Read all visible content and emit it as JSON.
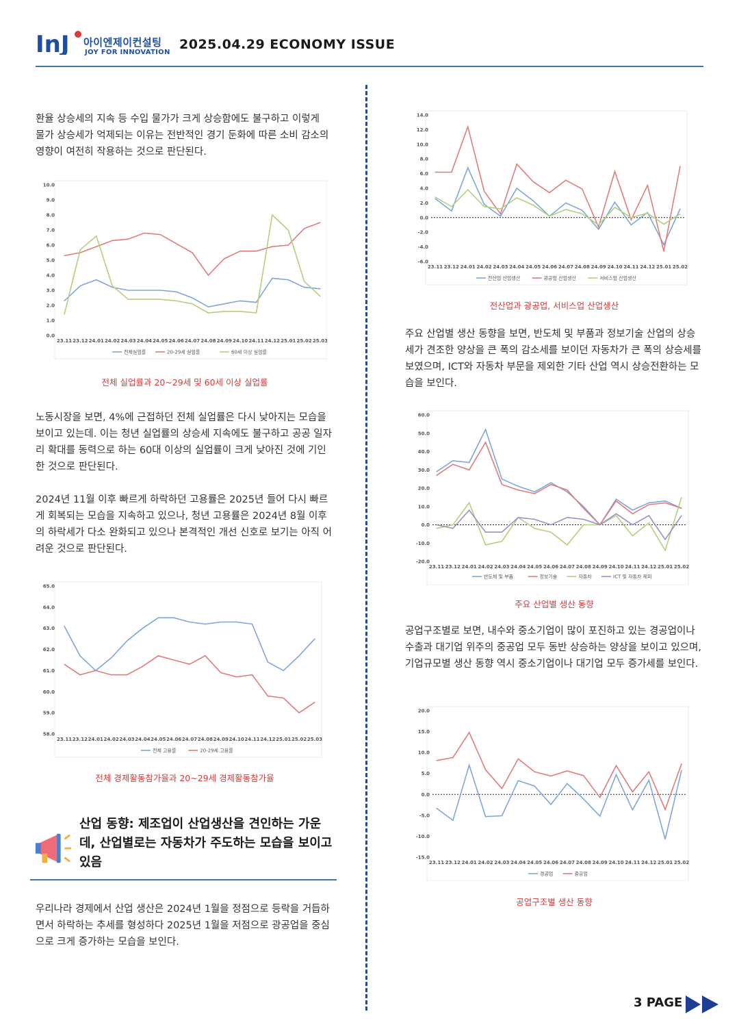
{
  "header": {
    "logo_letters": "InJ",
    "logo_name": "아이엔제이컨설팅",
    "logo_tagline": "JOY FOR INNOVATION",
    "issue_title": "2025.04.29 ECONOMY ISSUE"
  },
  "left": {
    "para1": "환율 상승세의 지속 등 수입 물가가 크게 상승함에도 불구하고 이렇게 물가 상승세가 억제되는 이유는 전반적인 경기 둔화에 따른 소비 감소의 영향이 여전히 작용하는 것으로 판단된다.",
    "caption1": "전체 실업률과 20~29세 및 60세 이상 실업률",
    "para2": "노동시장을 보면, 4%에 근접하던 전체 실업률은 다시 낮아지는 모습을 보이고 있는데. 이는 청년 실업률의 상승세 지속에도 불구하고 공공 일자리 확대를 동력으로 하는 60대 이상의 실업률이 크게 낮아진 것에 기인한 것으로 판단된다.",
    "para3": "2024년 11월 이후 빠르게 하락하던 고용률은 2025년 들어 다시 빠르게 회복되는 모습을 지속하고 있으나, 청년 고용률은 2024년 8월 이후의 하락세가 다소 완화되고 있으나 본격적인 개선 신호로 보기는 아직 어려운 것으로 판단된다.",
    "caption2": "전체 경제활동참가율과 20~29세 경제활동참가율",
    "section_title": "산업 동향: 제조업이 산업생산을 견인하는 가운데, 산업별로는 자동차가 주도하는 모습을 보이고 있음",
    "para4": "우리나라 경제에서 산업 생산은 2024년 1월을 정점으로 등락을 거듭하면서 하락하는 추세를 형성하다 2025년 1월을 저점으로 광공업을 중심으로 크게 증가하는 모습을 보인다."
  },
  "right": {
    "caption3": "전산업과 광공업, 서비스업 산업생산",
    "para5": "주요 산업별 생산 동향을 보면, 반도체 및 부품과 정보기술 산업의 상승세가 견조한 양상을 큰 폭의 감소세를 보이던 자동차가 큰 폭의 상승세를 보였으며, ICT와 자동차 부문을 제외한 기타 산업 역시 상승전환하는 모습을 보인다.",
    "caption4": "주요 산업별 생산 동향",
    "para6": "공업구조별로 보면, 내수와 중소기업이 많이 포진하고 있는 경공업이나 수출과 대기업 위주의 중공업 모두 동반 상승하는 양상을 보이고 있으며, 기업규모별 생산 동향 역시 중소기업이나 대기업 모두 증가세를 보인다.",
    "caption5": "공업구조별 생산 동향"
  },
  "footer": {
    "page": "3 PAGE"
  },
  "colors": {
    "blue": "#7ea6d8",
    "red": "#e07b7b",
    "green": "#b3cf7a",
    "accent": "#2b4a86",
    "caption": "#d63a3a"
  },
  "icons": {
    "section": "megaphone-icon",
    "page_nav": "double-arrow-right-icon"
  },
  "chart_data": [
    {
      "type": "line",
      "categories": [
        "23.11",
        "23.12",
        "24.01",
        "24.02",
        "24.03",
        "24.04",
        "24.05",
        "24.06",
        "24.07",
        "24.08",
        "24.09",
        "24.10",
        "24.11",
        "24.12",
        "25.01",
        "25.02",
        "25.03"
      ],
      "ylim": [
        0,
        10
      ],
      "yticks": [
        0,
        1,
        2,
        3,
        4,
        5,
        6,
        7,
        8,
        9,
        10
      ],
      "ydecimals": 1,
      "zero_line": false,
      "grid": false,
      "series": [
        {
          "name": "전체실업률",
          "color": "blue",
          "values": [
            2.3,
            3.3,
            3.7,
            3.2,
            3.0,
            3.0,
            3.0,
            2.9,
            2.5,
            1.9,
            2.1,
            2.3,
            2.2,
            3.8,
            3.7,
            3.2,
            3.1
          ]
        },
        {
          "name": "20-29세 실업률",
          "color": "red",
          "values": [
            5.3,
            5.5,
            5.9,
            6.3,
            6.4,
            6.8,
            6.7,
            6.1,
            5.5,
            4.0,
            5.1,
            5.6,
            5.6,
            5.9,
            6.0,
            7.1,
            7.5
          ]
        },
        {
          "name": "60세 이상 실업률",
          "color": "green",
          "values": [
            1.4,
            5.7,
            6.6,
            3.3,
            2.4,
            2.4,
            2.4,
            2.3,
            2.1,
            1.5,
            1.6,
            1.6,
            1.5,
            8.0,
            7.0,
            3.6,
            2.6
          ]
        }
      ]
    },
    {
      "type": "line",
      "categories": [
        "23.11",
        "23.12",
        "24.01",
        "24.02",
        "24.03",
        "24.04",
        "24.05",
        "24.06",
        "24.07",
        "24.08",
        "24.09",
        "24.10",
        "24.11",
        "24.12",
        "25.01",
        "25.02",
        "25.03"
      ],
      "ylim": [
        58,
        65
      ],
      "yticks": [
        58,
        59,
        60,
        61,
        62,
        63,
        64,
        65
      ],
      "ydecimals": 1,
      "zero_line": false,
      "grid": false,
      "series": [
        {
          "name": "전체 고용률",
          "color": "blue",
          "values": [
            63.1,
            61.7,
            61.0,
            61.6,
            62.4,
            63.0,
            63.5,
            63.5,
            63.3,
            63.2,
            63.3,
            63.3,
            63.2,
            61.4,
            61.0,
            61.7,
            62.5
          ]
        },
        {
          "name": "20-29세 고용률",
          "color": "red",
          "values": [
            61.3,
            60.8,
            61.0,
            60.8,
            60.8,
            61.2,
            61.7,
            61.5,
            61.3,
            61.7,
            60.9,
            60.7,
            60.8,
            59.8,
            59.7,
            59.0,
            59.5
          ]
        }
      ]
    },
    {
      "type": "line",
      "categories": [
        "23.11",
        "23.12",
        "24.01",
        "24.02",
        "24.03",
        "24.04",
        "24.05",
        "24.06",
        "24.07",
        "24.08",
        "24.09",
        "24.10",
        "24.11",
        "24.12",
        "25.01",
        "25.02"
      ],
      "ylim": [
        -6,
        14
      ],
      "yticks": [
        -6,
        -4,
        -2,
        0,
        2,
        4,
        6,
        8,
        10,
        12,
        14
      ],
      "ydecimals": 1,
      "zero_line": true,
      "grid": false,
      "series": [
        {
          "name": "전산업 산업생산",
          "color": "blue",
          "values": [
            2.6,
            0.9,
            6.8,
            1.8,
            0.2,
            4.0,
            2.3,
            0.2,
            2.0,
            1.0,
            -1.6,
            2.1,
            -1.0,
            0.7,
            -3.7,
            1.2
          ]
        },
        {
          "name": "광공업 산업생산",
          "color": "red",
          "values": [
            6.2,
            6.2,
            12.4,
            3.6,
            0.5,
            7.3,
            4.9,
            3.4,
            5.1,
            3.9,
            -1.3,
            6.3,
            -0.3,
            4.4,
            -4.6,
            7.0
          ]
        },
        {
          "name": "서비스업 산업생산",
          "color": "green",
          "values": [
            2.8,
            1.5,
            3.8,
            1.5,
            1.2,
            2.7,
            1.7,
            0.2,
            1.1,
            0.5,
            -1.0,
            1.4,
            0.0,
            0.6,
            -0.9,
            0.5
          ]
        }
      ]
    },
    {
      "type": "line",
      "categories": [
        "23.11",
        "23.12",
        "24.01",
        "24.02",
        "24.03",
        "24.04",
        "24.05",
        "24.06",
        "24.07",
        "24.08",
        "24.09",
        "24.10",
        "24.11",
        "24.12",
        "25.01",
        "25.02"
      ],
      "ylim": [
        -20,
        60
      ],
      "yticks": [
        -20,
        -10,
        0,
        10,
        20,
        30,
        40,
        50,
        60
      ],
      "ydecimals": 1,
      "zero_line": true,
      "grid": false,
      "series": [
        {
          "name": "반도체 및 부품",
          "color": "blue",
          "values": [
            29,
            35,
            34,
            52,
            25,
            21,
            18,
            23,
            18,
            10,
            0,
            14,
            8,
            12,
            13,
            9
          ]
        },
        {
          "name": "정보기술",
          "color": "red",
          "values": [
            27,
            33,
            30,
            45,
            22,
            19,
            17,
            22,
            19,
            9,
            0,
            13,
            6,
            11,
            12,
            9
          ]
        },
        {
          "name": "자동차",
          "color": "green",
          "values": [
            -2,
            0,
            12,
            -11,
            -9,
            4,
            -2,
            -4,
            -11,
            0,
            0,
            5,
            -6,
            1,
            -14,
            15
          ]
        },
        {
          "name": "ICT 및 자동차 제외",
          "color": "purple",
          "values": [
            0,
            -2,
            8,
            -4,
            -4,
            4,
            3,
            0,
            4,
            3,
            0,
            6,
            0,
            5,
            -8,
            5
          ]
        }
      ]
    },
    {
      "type": "line",
      "categories": [
        "23.11",
        "23.12",
        "24.01",
        "24.02",
        "24.03",
        "24.04",
        "24.05",
        "24.06",
        "24.07",
        "24.08",
        "24.09",
        "24.10",
        "24.11",
        "24.12",
        "25.01",
        "25.02"
      ],
      "ylim": [
        -15,
        20
      ],
      "yticks": [
        -15,
        -10,
        -5,
        0,
        5,
        10,
        15,
        20
      ],
      "ydecimals": 1,
      "zero_line": true,
      "grid": false,
      "series": [
        {
          "name": "경공업",
          "color": "blue",
          "values": [
            -3.3,
            -6.2,
            7.0,
            -5.3,
            -5.1,
            3.3,
            2.0,
            -2.4,
            2.6,
            -1.1,
            -5.2,
            4.7,
            -3.7,
            3.4,
            -10.7,
            5.7
          ]
        },
        {
          "name": "중공업",
          "color": "red",
          "values": [
            8.1,
            8.8,
            14.8,
            5.9,
            1.4,
            8.5,
            5.4,
            4.4,
            5.6,
            4.5,
            -0.7,
            6.9,
            0.6,
            5.4,
            -3.6,
            7.3
          ]
        }
      ]
    }
  ]
}
